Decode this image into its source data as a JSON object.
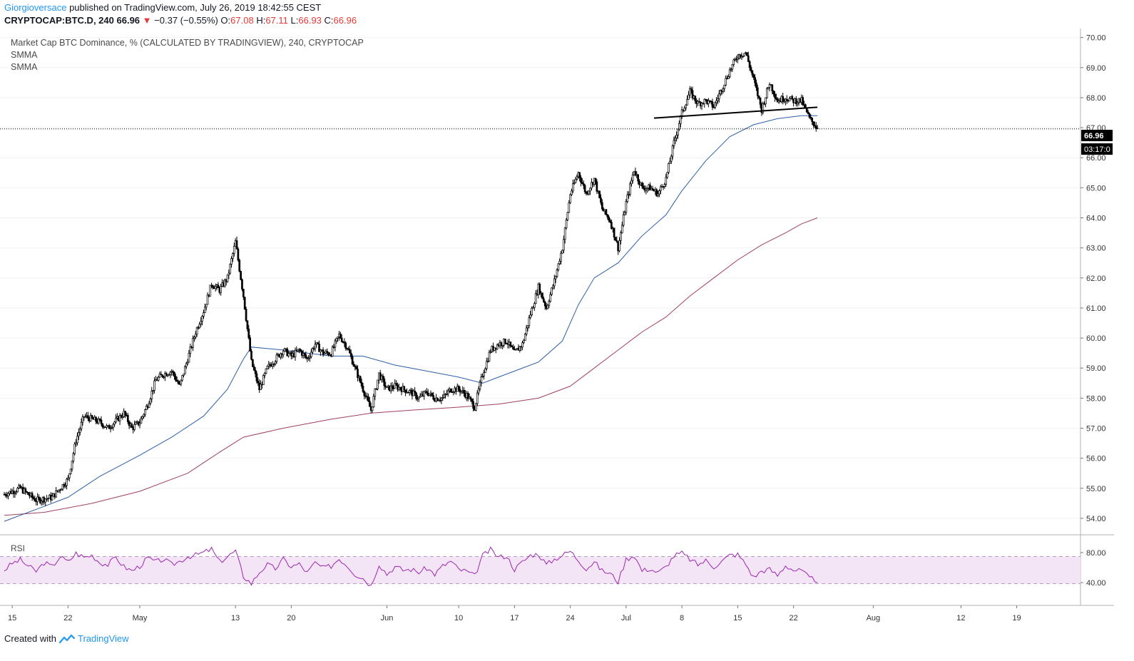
{
  "header": {
    "author": "Giorgioversace",
    "published": "published on TradingView.com, July 26, 2019 18:42:55 CEST",
    "symbol": "CRYPTOCAP:BTC.D, 240",
    "last": "66.96",
    "change_icon": "triangle-down-icon",
    "change": "−0.37 (−0.55%)",
    "o_label": "O:",
    "o_value": "67.08",
    "h_label": "H:",
    "h_value": "67.11",
    "l_label": "L:",
    "l_value": "66.93",
    "c_label": "C:",
    "c_value": "66.96"
  },
  "legend": {
    "title": "Market Cap BTC Dominance, % (CALCULATED BY TRADINGVIEW), 240, CRYPTOCAP",
    "ind1": "SMMA",
    "ind2": "SMMA"
  },
  "price_label": "66.96",
  "countdown_label": "03:17:0",
  "rsi": {
    "label": "RSI",
    "ticks": [
      "80.00",
      "40.00"
    ],
    "upper": 70,
    "lower": 30
  },
  "footer": {
    "created": "Created with",
    "brand": "TradingView",
    "logo_icon": "tradingview-logo-icon"
  },
  "colors": {
    "candle": "#000000",
    "smma_fast": "#2c5fa8",
    "smma_slow": "#a0405e",
    "rsi_line": "#9c27b0",
    "rsi_band": "#f3e5f5"
  },
  "chart_data": {
    "type": "candlestick",
    "y_ticks": [
      "70.00",
      "69.00",
      "68.00",
      "67.00",
      "66.00",
      "65.00",
      "64.00",
      "63.00",
      "62.00",
      "61.00",
      "60.00",
      "59.00",
      "58.00",
      "57.00",
      "56.00",
      "55.00",
      "54.00"
    ],
    "ylim": [
      53.5,
      70.3
    ],
    "x_tick_labels": [
      "15",
      "22",
      "May",
      "13",
      "20",
      "Jun",
      "10",
      "17",
      "24",
      "Jul",
      "8",
      "15",
      "22",
      "Aug",
      "12",
      "19"
    ],
    "x_tick_days": [
      -16,
      -9,
      0,
      12,
      19,
      31,
      40,
      47,
      54,
      61,
      68,
      75,
      82,
      92,
      103,
      110
    ],
    "x_range_days": [
      -17,
      118
    ],
    "last_price": 66.96,
    "price_path": [
      [
        -17,
        54.8
      ],
      [
        -15,
        55.0
      ],
      [
        -13,
        54.6
      ],
      [
        -11,
        54.7
      ],
      [
        -9,
        55.3
      ],
      [
        -8,
        56.6
      ],
      [
        -7,
        57.4
      ],
      [
        -6,
        57.3
      ],
      [
        -5,
        57.2
      ],
      [
        -4,
        57.0
      ],
      [
        -2,
        57.5
      ],
      [
        -1,
        57.0
      ],
      [
        0,
        57.2
      ],
      [
        1,
        57.8
      ],
      [
        2,
        58.6
      ],
      [
        3,
        58.8
      ],
      [
        4,
        58.9
      ],
      [
        5,
        58.4
      ],
      [
        6,
        59.3
      ],
      [
        7,
        60.2
      ],
      [
        8,
        60.9
      ],
      [
        9,
        61.8
      ],
      [
        10,
        61.6
      ],
      [
        11,
        62.0
      ],
      [
        12,
        63.2
      ],
      [
        13,
        61.4
      ],
      [
        14,
        59.2
      ],
      [
        15,
        58.3
      ],
      [
        16,
        59.0
      ],
      [
        17,
        59.3
      ],
      [
        18,
        59.6
      ],
      [
        19,
        59.4
      ],
      [
        20,
        59.6
      ],
      [
        21,
        59.3
      ],
      [
        22,
        59.8
      ],
      [
        23,
        59.5
      ],
      [
        24,
        59.5
      ],
      [
        25,
        60.1
      ],
      [
        26,
        59.7
      ],
      [
        27,
        59.0
      ],
      [
        28,
        58.3
      ],
      [
        29,
        57.6
      ],
      [
        30,
        58.8
      ],
      [
        31,
        58.3
      ],
      [
        32,
        58.4
      ],
      [
        33,
        58.3
      ],
      [
        34,
        58.2
      ],
      [
        35,
        58.0
      ],
      [
        36,
        58.2
      ],
      [
        37,
        58.0
      ],
      [
        38,
        58.0
      ],
      [
        39,
        58.3
      ],
      [
        40,
        58.3
      ],
      [
        41,
        58.1
      ],
      [
        42,
        57.7
      ],
      [
        43,
        58.8
      ],
      [
        44,
        59.6
      ],
      [
        45,
        59.8
      ],
      [
        46,
        59.9
      ],
      [
        47,
        59.5
      ],
      [
        48,
        59.8
      ],
      [
        49,
        60.8
      ],
      [
        50,
        61.7
      ],
      [
        51,
        61.0
      ],
      [
        52,
        61.9
      ],
      [
        53,
        63.0
      ],
      [
        54,
        64.8
      ],
      [
        55,
        65.5
      ],
      [
        56,
        64.8
      ],
      [
        57,
        65.3
      ],
      [
        58,
        64.3
      ],
      [
        59,
        63.9
      ],
      [
        60,
        63.0
      ],
      [
        61,
        64.5
      ],
      [
        62,
        65.6
      ],
      [
        63,
        65.0
      ],
      [
        64,
        65.0
      ],
      [
        65,
        64.8
      ],
      [
        66,
        65.3
      ],
      [
        67,
        66.5
      ],
      [
        68,
        67.5
      ],
      [
        69,
        68.2
      ],
      [
        70,
        67.8
      ],
      [
        71,
        67.9
      ],
      [
        72,
        67.7
      ],
      [
        73,
        68.3
      ],
      [
        74,
        68.9
      ],
      [
        75,
        69.4
      ],
      [
        76,
        69.5
      ],
      [
        77,
        68.6
      ],
      [
        78,
        67.6
      ],
      [
        79,
        68.5
      ],
      [
        80,
        67.9
      ],
      [
        81,
        68.0
      ],
      [
        82,
        67.9
      ],
      [
        83,
        67.9
      ],
      [
        84,
        67.3
      ],
      [
        85,
        67.0
      ]
    ],
    "smma_fast_path": [
      [
        -17,
        53.9
      ],
      [
        -13,
        54.3
      ],
      [
        -9,
        54.7
      ],
      [
        -5,
        55.4
      ],
      [
        0,
        56.1
      ],
      [
        4,
        56.7
      ],
      [
        8,
        57.4
      ],
      [
        11,
        58.3
      ],
      [
        13,
        59.3
      ],
      [
        14,
        59.7
      ],
      [
        18,
        59.6
      ],
      [
        24,
        59.4
      ],
      [
        28,
        59.4
      ],
      [
        32,
        59.1
      ],
      [
        36,
        58.9
      ],
      [
        40,
        58.7
      ],
      [
        43,
        58.5
      ],
      [
        46,
        58.8
      ],
      [
        50,
        59.2
      ],
      [
        53,
        59.9
      ],
      [
        55,
        61.1
      ],
      [
        57,
        62.0
      ],
      [
        60,
        62.5
      ],
      [
        63,
        63.4
      ],
      [
        66,
        64.1
      ],
      [
        68,
        64.9
      ],
      [
        71,
        65.9
      ],
      [
        74,
        66.7
      ],
      [
        77,
        67.1
      ],
      [
        80,
        67.3
      ],
      [
        83,
        67.4
      ],
      [
        85,
        67.4
      ]
    ],
    "smma_slow_path": [
      [
        -17,
        54.1
      ],
      [
        -12,
        54.2
      ],
      [
        -6,
        54.5
      ],
      [
        0,
        54.9
      ],
      [
        6,
        55.5
      ],
      [
        10,
        56.2
      ],
      [
        13,
        56.7
      ],
      [
        18,
        57.0
      ],
      [
        24,
        57.3
      ],
      [
        29,
        57.5
      ],
      [
        34,
        57.6
      ],
      [
        40,
        57.7
      ],
      [
        45,
        57.8
      ],
      [
        50,
        58.0
      ],
      [
        54,
        58.4
      ],
      [
        57,
        59.0
      ],
      [
        60,
        59.6
      ],
      [
        63,
        60.2
      ],
      [
        66,
        60.7
      ],
      [
        69,
        61.4
      ],
      [
        72,
        62.0
      ],
      [
        75,
        62.6
      ],
      [
        78,
        63.1
      ],
      [
        81,
        63.5
      ],
      [
        83,
        63.8
      ],
      [
        85,
        64.0
      ]
    ],
    "trendline": [
      [
        64.5,
        67.32
      ],
      [
        85.0,
        67.68
      ]
    ],
    "rsi_path": [
      [
        -17,
        50
      ],
      [
        -16,
        60
      ],
      [
        -15,
        65
      ],
      [
        -14,
        56
      ],
      [
        -13,
        48
      ],
      [
        -12,
        61
      ],
      [
        -11,
        55
      ],
      [
        -10,
        70
      ],
      [
        -9,
        62
      ],
      [
        -8,
        75
      ],
      [
        -7,
        69
      ],
      [
        -6,
        72
      ],
      [
        -5,
        61
      ],
      [
        -4,
        58
      ],
      [
        -3,
        69
      ],
      [
        -2,
        55
      ],
      [
        -1,
        49
      ],
      [
        0,
        56
      ],
      [
        1,
        68
      ],
      [
        2,
        62
      ],
      [
        3,
        66
      ],
      [
        4,
        58
      ],
      [
        5,
        63
      ],
      [
        6,
        70
      ],
      [
        7,
        72
      ],
      [
        8,
        76
      ],
      [
        9,
        81
      ],
      [
        10,
        62
      ],
      [
        11,
        70
      ],
      [
        12,
        78
      ],
      [
        13,
        41
      ],
      [
        14,
        30
      ],
      [
        15,
        47
      ],
      [
        16,
        58
      ],
      [
        17,
        52
      ],
      [
        18,
        66
      ],
      [
        19,
        55
      ],
      [
        20,
        59
      ],
      [
        21,
        46
      ],
      [
        22,
        61
      ],
      [
        23,
        53
      ],
      [
        24,
        56
      ],
      [
        25,
        67
      ],
      [
        26,
        57
      ],
      [
        27,
        44
      ],
      [
        28,
        38
      ],
      [
        29,
        27
      ],
      [
        30,
        59
      ],
      [
        31,
        44
      ],
      [
        32,
        55
      ],
      [
        33,
        50
      ],
      [
        34,
        51
      ],
      [
        35,
        47
      ],
      [
        36,
        53
      ],
      [
        37,
        44
      ],
      [
        38,
        56
      ],
      [
        39,
        63
      ],
      [
        40,
        51
      ],
      [
        41,
        48
      ],
      [
        42,
        41
      ],
      [
        43,
        71
      ],
      [
        44,
        80
      ],
      [
        45,
        69
      ],
      [
        46,
        71
      ],
      [
        47,
        51
      ],
      [
        48,
        62
      ],
      [
        49,
        72
      ],
      [
        50,
        74
      ],
      [
        51,
        58
      ],
      [
        52,
        66
      ],
      [
        53,
        72
      ],
      [
        54,
        78
      ],
      [
        55,
        65
      ],
      [
        56,
        52
      ],
      [
        57,
        62
      ],
      [
        58,
        49
      ],
      [
        59,
        45
      ],
      [
        60,
        33
      ],
      [
        61,
        66
      ],
      [
        62,
        72
      ],
      [
        63,
        49
      ],
      [
        64,
        52
      ],
      [
        65,
        46
      ],
      [
        66,
        55
      ],
      [
        67,
        71
      ],
      [
        68,
        75
      ],
      [
        69,
        66
      ],
      [
        70,
        58
      ],
      [
        71,
        64
      ],
      [
        72,
        55
      ],
      [
        73,
        63
      ],
      [
        74,
        72
      ],
      [
        75,
        73
      ],
      [
        76,
        59
      ],
      [
        77,
        39
      ],
      [
        78,
        49
      ],
      [
        79,
        51
      ],
      [
        80,
        42
      ],
      [
        81,
        57
      ],
      [
        82,
        50
      ],
      [
        83,
        49
      ],
      [
        84,
        38
      ],
      [
        85,
        35
      ]
    ]
  }
}
